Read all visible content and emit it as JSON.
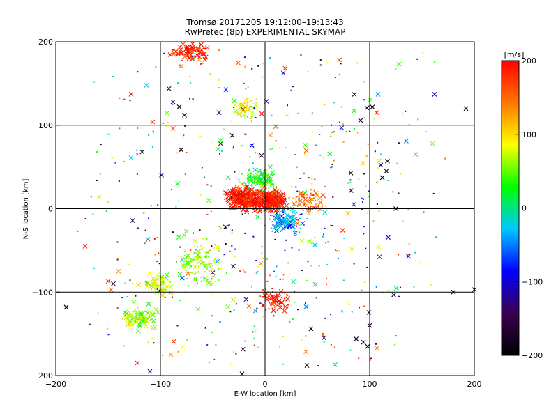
{
  "chart_data": {
    "type": "scatter",
    "title": "Tromsø 20171205 19:12:00–19:13:43",
    "subtitle": "RwPretec (8p) EXPERIMENTAL SKYMAP",
    "xlabel": "E-W location [km]",
    "ylabel": "N-S location [km]",
    "xlim": [
      -200,
      200
    ],
    "ylim": [
      -200,
      200
    ],
    "x_ticks": [
      -200,
      -100,
      0,
      100,
      200
    ],
    "y_ticks": [
      -200,
      -100,
      0,
      100,
      200
    ],
    "x_tick_labels": [
      "−200",
      "−100",
      "0",
      "100",
      "200"
    ],
    "y_tick_labels": [
      "−200",
      "−100",
      "0",
      "100",
      "200"
    ],
    "grid": true,
    "colorbar": {
      "label": "[m/s]",
      "range": [
        -200,
        200
      ],
      "ticks": [
        200,
        100,
        0,
        -100,
        -200
      ],
      "tick_labels": [
        "200",
        "100",
        "0",
        "−100",
        "−200"
      ],
      "colormap": [
        "#000000",
        "#3c0050",
        "#0000ff",
        "#00c8ff",
        "#00ff00",
        "#ffff00",
        "#ff7800",
        "#ff0000"
      ]
    },
    "cluster_summary": [
      {
        "x": 5,
        "y": 10,
        "velocity": 190,
        "marker": "x"
      },
      {
        "x": -20,
        "y": 12,
        "velocity": 195,
        "marker": "x"
      },
      {
        "x": -5,
        "y": 35,
        "velocity": 30,
        "marker": "dot"
      },
      {
        "x": 20,
        "y": -15,
        "velocity": -40,
        "marker": "dot"
      },
      {
        "x": -60,
        "y": -65,
        "velocity": 60,
        "marker": "dot"
      },
      {
        "x": -100,
        "y": -90,
        "velocity": 80,
        "marker": "dot"
      },
      {
        "x": -70,
        "y": 190,
        "velocity": 195,
        "marker": "x"
      },
      {
        "x": -20,
        "y": 120,
        "velocity": 80,
        "marker": "dot"
      },
      {
        "x": -120,
        "y": -130,
        "velocity": 60,
        "marker": "x"
      },
      {
        "x": 10,
        "y": -110,
        "velocity": 190,
        "marker": "dot"
      },
      {
        "x": 40,
        "y": 10,
        "velocity": 150,
        "marker": "dot"
      }
    ],
    "isolated_points": [
      {
        "x": -82,
        "y": 122,
        "velocity": -195,
        "marker": "x"
      },
      {
        "x": -88,
        "y": 128,
        "velocity": -190,
        "marker": "x"
      },
      {
        "x": -77,
        "y": 112,
        "velocity": -195,
        "marker": "x"
      },
      {
        "x": 125,
        "y": 0,
        "velocity": -200,
        "marker": "x"
      },
      {
        "x": 180,
        "y": -100,
        "velocity": -200,
        "marker": "x"
      },
      {
        "x": 192,
        "y": 120,
        "velocity": -180,
        "marker": "x"
      },
      {
        "x": 162,
        "y": 137,
        "velocity": -110,
        "marker": "x"
      },
      {
        "x": 108,
        "y": 137,
        "velocity": -40,
        "marker": "x"
      },
      {
        "x": 116,
        "y": 45,
        "velocity": -185,
        "marker": "x"
      },
      {
        "x": 117,
        "y": 57,
        "velocity": -170,
        "marker": "x"
      },
      {
        "x": -190,
        "y": -118,
        "velocity": -200,
        "marker": "x"
      },
      {
        "x": 98,
        "y": -165,
        "velocity": -200,
        "marker": "x"
      },
      {
        "x": 94,
        "y": -160,
        "velocity": -195,
        "marker": "x"
      },
      {
        "x": 100,
        "y": -140,
        "velocity": -160,
        "marker": "x"
      },
      {
        "x": 40,
        "y": -188,
        "velocity": -200,
        "marker": "x"
      },
      {
        "x": -110,
        "y": -195,
        "velocity": -110,
        "marker": "x"
      },
      {
        "x": -122,
        "y": -185,
        "velocity": 190,
        "marker": "x"
      },
      {
        "x": -172,
        "y": -45,
        "velocity": 190,
        "marker": "x"
      },
      {
        "x": -140,
        "y": -75,
        "velocity": 130,
        "marker": "x"
      },
      {
        "x": -145,
        "y": -90,
        "velocity": -150,
        "marker": "x"
      },
      {
        "x": -128,
        "y": 61,
        "velocity": -30,
        "marker": "x"
      },
      {
        "x": -128,
        "y": 137,
        "velocity": 190,
        "marker": "x"
      },
      {
        "x": 160,
        "y": 78,
        "velocity": 60,
        "marker": "x"
      },
      {
        "x": 107,
        "y": -167,
        "velocity": 130,
        "marker": "x"
      },
      {
        "x": -90,
        "y": -175,
        "velocity": 130,
        "marker": "x"
      },
      {
        "x": 67,
        "y": -187,
        "velocity": -30,
        "marker": "x"
      },
      {
        "x": -22,
        "y": -198,
        "velocity": -200,
        "marker": "x"
      },
      {
        "x": 200,
        "y": -97,
        "velocity": -200,
        "marker": "x"
      }
    ]
  }
}
